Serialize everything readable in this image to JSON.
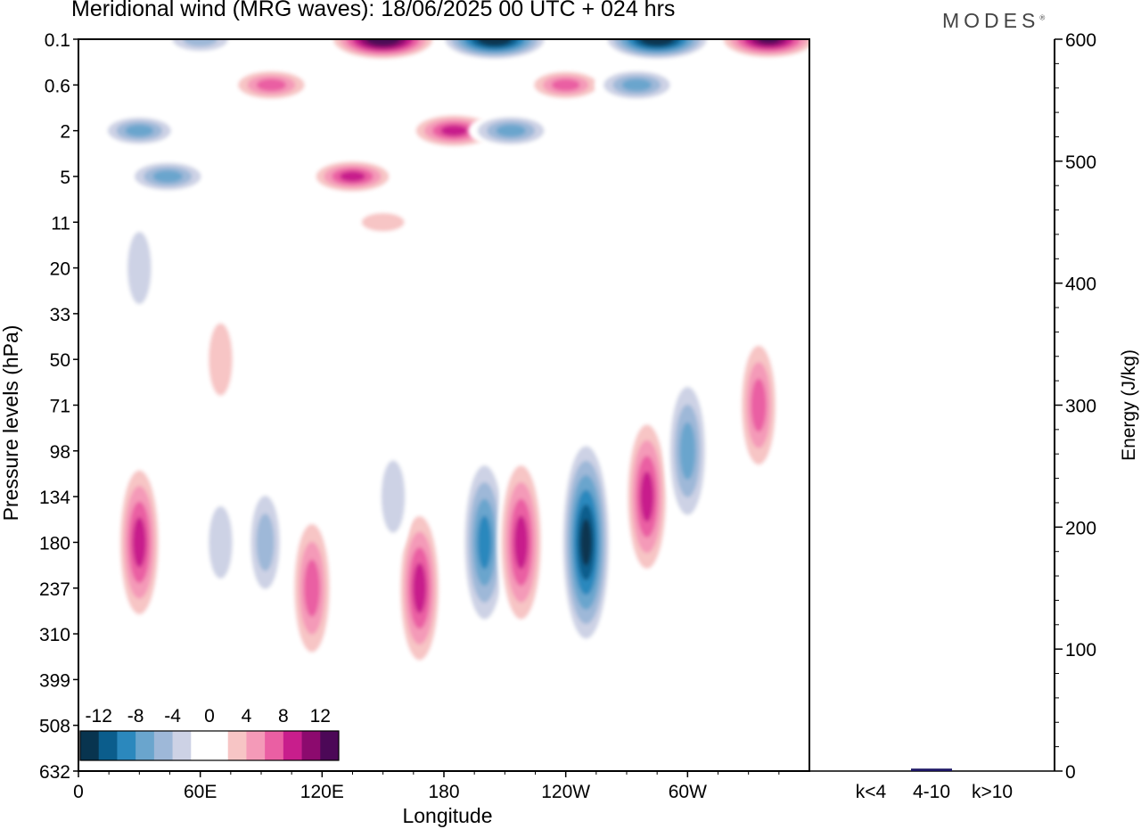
{
  "title": "Meridional wind (MRG waves):  18/06/2025  00 UTC  + 024 hrs",
  "brand": "MODES",
  "chart_data": [
    {
      "type": "heatmap",
      "xlabel": "Longitude",
      "ylabel": "Pressure levels (hPa)",
      "x_ticks": [
        "0",
        "60E",
        "120E",
        "180",
        "120W",
        "60W"
      ],
      "y_ticks": [
        "0.1",
        "0.6",
        "2",
        "5",
        "11",
        "20",
        "33",
        "50",
        "71",
        "98",
        "134",
        "180",
        "237",
        "310",
        "399",
        "508",
        "632"
      ],
      "colorbar": {
        "labels": [
          "-12",
          "-8",
          "-4",
          "0",
          "4",
          "8",
          "12"
        ],
        "colors": [
          "#08344f",
          "#0b5d8c",
          "#2b88bd",
          "#6aa5cd",
          "#9eb8d8",
          "#cdd2e5",
          "#ffffff",
          "#ffffff",
          "#f7c5c5",
          "#f49ab8",
          "#ea5fa3",
          "#c81e8c",
          "#8c0a6e",
          "#4c0857"
        ]
      },
      "anomalies": [
        {
          "lon": 30,
          "level": "180",
          "value": 9
        },
        {
          "lon": 115,
          "level": "237",
          "value": 8
        },
        {
          "lon": 168,
          "level": "237",
          "value": 9
        },
        {
          "lon": 200,
          "level": "180",
          "value": -10
        },
        {
          "lon": 218,
          "level": "180",
          "value": 10
        },
        {
          "lon": 250,
          "level": "180",
          "value": -13
        },
        {
          "lon": 280,
          "level": "134",
          "value": 9
        },
        {
          "lon": 300,
          "level": "98",
          "value": -8
        },
        {
          "lon": 335,
          "level": "71",
          "value": 7
        },
        {
          "lon": 70,
          "level": "180",
          "value": -4
        },
        {
          "lon": 92,
          "level": "180",
          "value": -5
        },
        {
          "lon": 155,
          "level": "134",
          "value": -4
        },
        {
          "lon": 150,
          "level": "0.1",
          "value": 15
        },
        {
          "lon": 205,
          "level": "0.1",
          "value": -15
        },
        {
          "lon": 285,
          "level": "0.1",
          "value": -15
        },
        {
          "lon": 340,
          "level": "0.1",
          "value": 13
        },
        {
          "lon": 60,
          "level": "0.1",
          "value": -6
        },
        {
          "lon": 95,
          "level": "0.6",
          "value": 8
        },
        {
          "lon": 30,
          "level": "2",
          "value": -7
        },
        {
          "lon": 44,
          "level": "5",
          "value": -8
        },
        {
          "lon": 135,
          "level": "5",
          "value": 9
        },
        {
          "lon": 185,
          "level": "2",
          "value": 10
        },
        {
          "lon": 213,
          "level": "2",
          "value": -8
        },
        {
          "lon": 240,
          "level": "0.6",
          "value": 7
        },
        {
          "lon": 275,
          "level": "0.6",
          "value": -8
        },
        {
          "lon": 150,
          "level": "11",
          "value": 4
        },
        {
          "lon": 30,
          "level": "20",
          "value": -4
        },
        {
          "lon": 70,
          "level": "50",
          "value": 4
        }
      ]
    },
    {
      "type": "bar",
      "categories": [
        "k<4",
        "4-10",
        "k>10"
      ],
      "values": [
        0,
        2,
        0
      ],
      "ylabel": "Energy (J/kg)",
      "ylim": [
        0,
        600
      ],
      "y_ticks": [
        "0",
        "100",
        "200",
        "300",
        "400",
        "500",
        "600"
      ],
      "bar_color": "#1b1464"
    }
  ]
}
